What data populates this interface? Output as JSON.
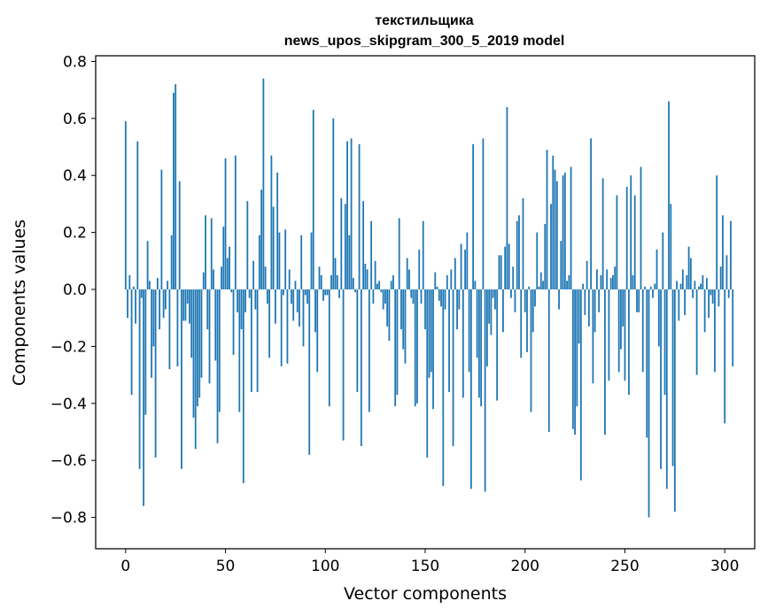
{
  "chart_data": {
    "type": "bar",
    "title": "текстильщика",
    "subtitle": "news_upos_skipgram_300_5_2019 model",
    "xlabel": "Vector components",
    "ylabel": "Components values",
    "xlim": [
      -15,
      315
    ],
    "ylim": [
      -0.91,
      0.82
    ],
    "xticks": [
      0,
      50,
      100,
      150,
      200,
      250,
      300
    ],
    "yticks": [
      -0.8,
      -0.6,
      -0.4,
      -0.2,
      0.0,
      0.2,
      0.4,
      0.6,
      0.8
    ],
    "xtick_labels": [
      "0",
      "50",
      "100",
      "150",
      "200",
      "250",
      "300"
    ],
    "ytick_labels": [
      "−0.8",
      "−0.6",
      "−0.4",
      "−0.2",
      "0.0",
      "0.2",
      "0.4",
      "0.6",
      "0.8"
    ],
    "grid": false,
    "bar_color": "#1f77b4",
    "values": [
      0.59,
      -0.1,
      0.05,
      -0.37,
      0.01,
      -0.12,
      0.52,
      -0.63,
      -0.03,
      -0.76,
      -0.44,
      0.17,
      0.03,
      -0.31,
      -0.2,
      -0.59,
      0.04,
      -0.14,
      0.42,
      -0.1,
      -0.07,
      0.03,
      -0.28,
      0.19,
      0.69,
      0.72,
      -0.27,
      0.38,
      -0.63,
      -0.11,
      -0.11,
      -0.05,
      -0.12,
      -0.24,
      -0.45,
      -0.56,
      -0.41,
      -0.38,
      -0.31,
      0.06,
      0.26,
      -0.14,
      -0.33,
      0.25,
      0.07,
      -0.25,
      -0.54,
      -0.43,
      0.08,
      0.22,
      0.46,
      0.11,
      0.15,
      -0.01,
      -0.23,
      0.47,
      -0.08,
      -0.43,
      -0.14,
      -0.68,
      -0.08,
      0.31,
      -0.03,
      -0.36,
      0.1,
      -0.07,
      -0.36,
      0.19,
      0.35,
      0.74,
      0.08,
      -0.05,
      -0.24,
      0.47,
      0.29,
      -0.12,
      0.41,
      0.2,
      -0.27,
      -0.02,
      0.21,
      -0.26,
      0.07,
      -0.05,
      -0.11,
      0.03,
      -0.08,
      -0.13,
      0.19,
      -0.2,
      -0.02,
      -0.05,
      -0.58,
      0.2,
      0.63,
      -0.15,
      -0.29,
      0.08,
      0.05,
      -0.04,
      -0.02,
      -0.02,
      -0.41,
      0.05,
      0.6,
      0.11,
      0.05,
      -0.03,
      0.32,
      -0.53,
      0.3,
      0.52,
      0.19,
      0.53,
      0.04,
      -0.01,
      -0.36,
      0.51,
      -0.55,
      0.31,
      0.09,
      0.07,
      -0.43,
      0.24,
      -0.05,
      0.1,
      0.02,
      0.03,
      -0.01,
      -0.07,
      -0.05,
      -0.13,
      -0.18,
      0.03,
      0.05,
      -0.41,
      -0.37,
      0.25,
      -0.14,
      -0.21,
      -0.26,
      0.11,
      0.07,
      -0.03,
      -0.05,
      -0.41,
      -0.4,
      0.14,
      -0.05,
      0.24,
      -0.14,
      -0.59,
      -0.31,
      -0.29,
      -0.42,
      0.06,
      0.01,
      -0.04,
      -0.06,
      -0.69,
      -0.07,
      0.05,
      -0.36,
      0.07,
      -0.55,
      0.11,
      -0.14,
      -0.07,
      0.16,
      -0.38,
      0.14,
      0.2,
      -0.29,
      -0.7,
      0.51,
      0.03,
      -0.24,
      -0.38,
      -0.41,
      0.53,
      -0.71,
      -0.27,
      -0.12,
      -0.16,
      -0.03,
      -0.07,
      -0.39,
      0.12,
      0.12,
      -0.15,
      0.15,
      0.64,
      0.16,
      -0.03,
      0.08,
      -0.08,
      0.24,
      0.26,
      -0.24,
      0.32,
      -0.08,
      -0.22,
      0.01,
      -0.43,
      -0.15,
      -0.06,
      0.2,
      0.01,
      0.06,
      0.03,
      0.23,
      0.49,
      -0.5,
      0.3,
      0.47,
      0.42,
      0.38,
      -0.07,
      0.17,
      0.4,
      0.41,
      0.03,
      0.05,
      0.43,
      -0.49,
      -0.51,
      -0.41,
      -0.19,
      -0.67,
      0.02,
      -0.09,
      0.1,
      -0.13,
      0.53,
      -0.33,
      -0.15,
      0.07,
      -0.08,
      0.05,
      0.39,
      -0.51,
      0.07,
      -0.32,
      0.04,
      0.05,
      0.08,
      0.33,
      -0.29,
      -0.21,
      -0.13,
      -0.32,
      0.36,
      -0.37,
      0.4,
      0.05,
      0.33,
      -0.08,
      -0.08,
      0.43,
      -0.29,
      0.01,
      -0.52,
      -0.8,
      0.01,
      -0.03,
      0.02,
      0.14,
      -0.2,
      -0.63,
      0.2,
      -0.37,
      -0.7,
      0.66,
      0.3,
      -0.62,
      -0.78,
      0.03,
      -0.11,
      0.02,
      0.07,
      -0.09,
      0.05,
      0.15,
      0.11,
      -0.03,
      0.03,
      -0.3,
      0.01,
      0.02,
      0.05,
      -0.15,
      0.04,
      -0.1,
      -0.02,
      -0.05,
      -0.29,
      0.4,
      -0.06,
      0.08,
      0.26,
      -0.47,
      0.12,
      -0.03,
      0.24,
      -0.27
    ]
  }
}
